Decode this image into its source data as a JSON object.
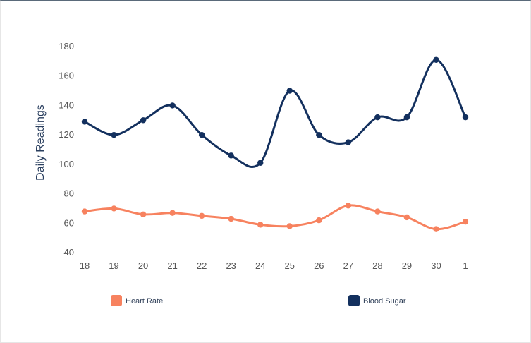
{
  "chart_data": {
    "type": "line",
    "title": "",
    "xlabel": "",
    "ylabel": "Daily Readings",
    "categories": [
      "18",
      "19",
      "20",
      "21",
      "22",
      "23",
      "24",
      "25",
      "26",
      "27",
      "28",
      "29",
      "30",
      "1"
    ],
    "ylim": [
      40,
      180
    ],
    "yticks": [
      40,
      60,
      80,
      100,
      120,
      140,
      160,
      180
    ],
    "grid": false,
    "legend": "bottom",
    "series": [
      {
        "name": "Heart Rate",
        "color": "#f7825f",
        "values": [
          68,
          70,
          66,
          67,
          65,
          63,
          59,
          58,
          62,
          72,
          68,
          64,
          56,
          61
        ]
      },
      {
        "name": "Blood Sugar",
        "color": "#13305e",
        "values": [
          129,
          120,
          130,
          140,
          120,
          106,
          101,
          150,
          120,
          115,
          132,
          132,
          171,
          132
        ]
      }
    ]
  }
}
